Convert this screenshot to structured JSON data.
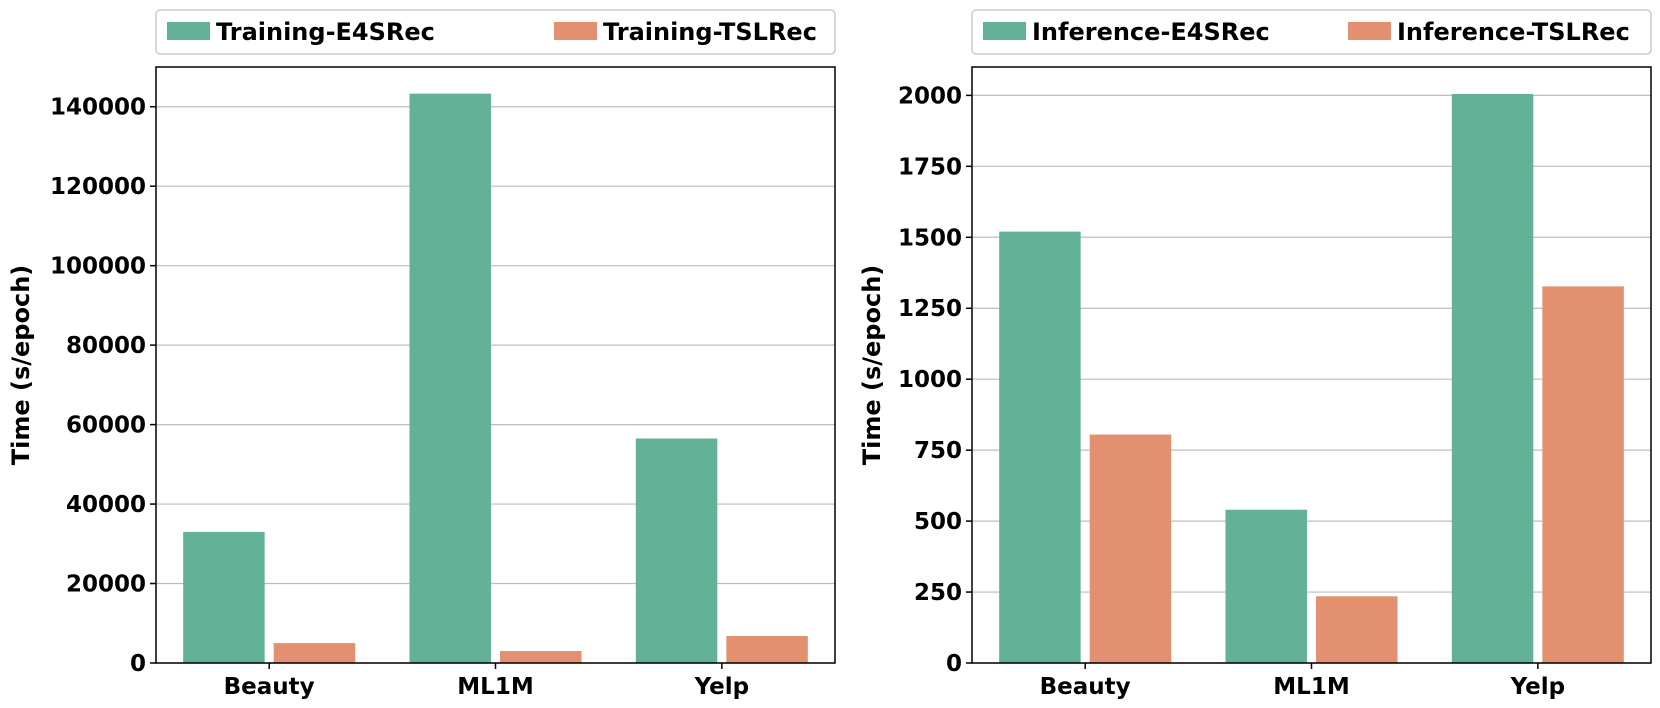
{
  "chart_data": [
    {
      "type": "bar",
      "categories": [
        "Beauty",
        "ML1M",
        "Yelp"
      ],
      "series": [
        {
          "name": "Training-E4SRec",
          "values": [
            33000,
            143300,
            56500
          ],
          "color": "#63b197"
        },
        {
          "name": "Training-TSLRec",
          "values": [
            5000,
            3000,
            6800
          ],
          "color": "#e2906f"
        }
      ],
      "ylabel": "Time (s/epoch)",
      "ylim": [
        0,
        150000
      ],
      "yticks": [
        0,
        20000,
        40000,
        60000,
        80000,
        100000,
        120000,
        140000
      ],
      "grid": true,
      "legend": "top"
    },
    {
      "type": "bar",
      "categories": [
        "Beauty",
        "ML1M",
        "Yelp"
      ],
      "series": [
        {
          "name": "Inference-E4SRec",
          "values": [
            1520,
            540,
            2005
          ],
          "color": "#63b197"
        },
        {
          "name": "Inference-TSLRec",
          "values": [
            805,
            235,
            1327
          ],
          "color": "#e2906f"
        }
      ],
      "ylabel": "Time (s/epoch)",
      "ylim": [
        0,
        2100
      ],
      "yticks": [
        0,
        250,
        500,
        750,
        1000,
        1250,
        1500,
        1750,
        2000
      ],
      "grid": true,
      "legend": "top"
    }
  ]
}
